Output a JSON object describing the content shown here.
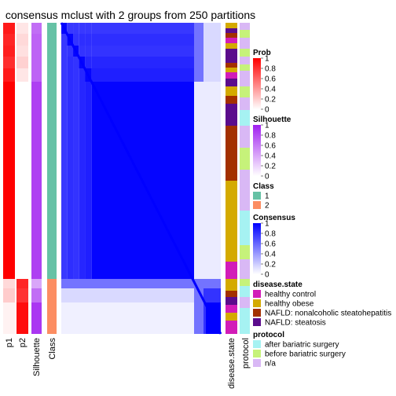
{
  "title": "consensus mclust with 2 groups from 250 partitions",
  "left_annotations": [
    {
      "key": "p1",
      "label": "p1"
    },
    {
      "key": "p2",
      "label": "p2"
    },
    {
      "key": "silhouette",
      "label": "Silhouette"
    },
    {
      "key": "class",
      "label": "Class"
    }
  ],
  "right_annotations": [
    {
      "key": "disease",
      "label": "disease.state"
    },
    {
      "key": "protocol",
      "label": "protocol"
    }
  ],
  "colors": {
    "prob_high": "#ff0000",
    "prob_low": "#ffffff",
    "silhouette_high": "#a020f0",
    "class_1": "#66c2a5",
    "class_2": "#fc8d62",
    "consensus_high": "#0000ff",
    "healthy_control": "#d21cb8",
    "healthy_obese": "#d4aa00",
    "nafld_steatohepatitis": "#a33000",
    "nafld_steatosis": "#5b0c8c",
    "after_bariatric": "#a6f2f2",
    "before_bariatric": "#c6f27a",
    "protocol_na": "#d9b8f5"
  },
  "chart_data": {
    "type": "heatmap",
    "n_groups": 2,
    "n_partitions": 250,
    "group_sizes": {
      "class_1": 36,
      "class_2": 9
    },
    "legends": [
      {
        "title": "Prob",
        "type": "continuous",
        "ticks": [
          "1",
          "0.8",
          "0.6",
          "0.4",
          "0.2",
          "0"
        ],
        "color": "prob"
      },
      {
        "title": "Silhouette",
        "type": "continuous",
        "ticks": [
          "1",
          "0.8",
          "0.6",
          "0.4",
          "0.2",
          "0"
        ],
        "color": "silhouette"
      },
      {
        "title": "Class",
        "type": "discrete",
        "items": [
          {
            "label": "1",
            "color": "class_1"
          },
          {
            "label": "2",
            "color": "class_2"
          }
        ]
      },
      {
        "title": "Consensus",
        "type": "continuous",
        "ticks": [
          "1",
          "0.8",
          "0.6",
          "0.4",
          "0.2",
          "0"
        ],
        "color": "consensus"
      },
      {
        "title": "disease.state",
        "type": "discrete",
        "items": [
          {
            "label": "healthy control",
            "color": "healthy_control"
          },
          {
            "label": "healthy obese",
            "color": "healthy_obese"
          },
          {
            "label": "NAFLD: nonalcoholic steatohepatitis",
            "color": "nafld_steatohepatitis"
          },
          {
            "label": "NAFLD: steatosis",
            "color": "nafld_steatosis"
          }
        ]
      },
      {
        "title": "protocol",
        "type": "discrete",
        "items": [
          {
            "label": "after bariatric surgery",
            "color": "after_bariatric"
          },
          {
            "label": "before bariatric surgery",
            "color": "before_bariatric"
          },
          {
            "label": "n/a",
            "color": "protocol_na"
          }
        ]
      }
    ]
  }
}
